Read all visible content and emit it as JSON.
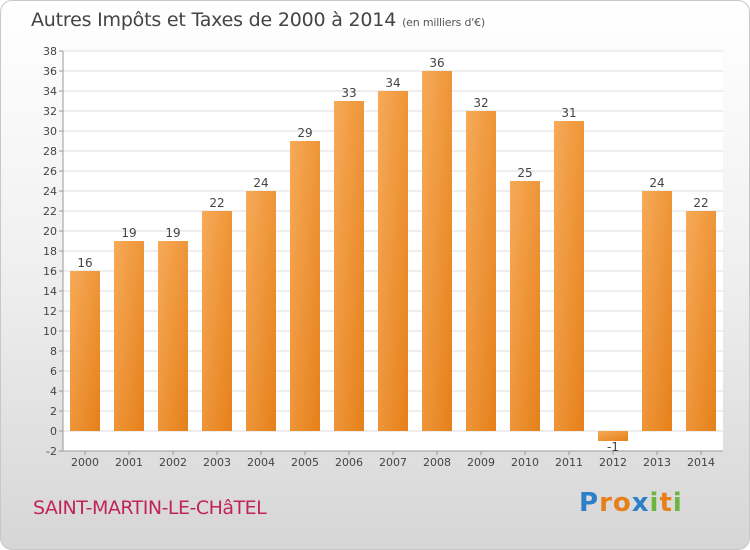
{
  "header": {
    "title": "Autres Impôts et Taxes de 2000 à 2014",
    "subtitle": "(en milliers d'€)"
  },
  "footer": {
    "commune": "SAINT-MARTIN-LE-CHâTEL",
    "logo_letters": [
      "P",
      "r",
      "o",
      "x",
      "i",
      "t",
      "i"
    ],
    "logo_colors": [
      "#2e7fc9",
      "#e5801a",
      "#e5801a",
      "#2e7fc9",
      "#6cb63e",
      "#e5801a",
      "#6cb63e"
    ]
  },
  "chart_data": {
    "type": "bar",
    "title": "Autres Impôts et Taxes de 2000 à 2014",
    "xlabel": "",
    "ylabel": "",
    "ylim": [
      -2,
      38
    ],
    "yticks": [
      -2,
      0,
      2,
      4,
      6,
      8,
      10,
      12,
      14,
      16,
      18,
      20,
      22,
      24,
      26,
      28,
      30,
      32,
      34,
      36,
      38
    ],
    "categories": [
      "2000",
      "2001",
      "2002",
      "2003",
      "2004",
      "2005",
      "2006",
      "2007",
      "2008",
      "2009",
      "2010",
      "2011",
      "2012",
      "2013",
      "2014"
    ],
    "values": [
      16,
      19,
      19,
      22,
      24,
      29,
      33,
      34,
      36,
      32,
      25,
      31,
      -1,
      24,
      22
    ],
    "data_labels": [
      "16",
      "19",
      "19",
      "22",
      "24",
      "29",
      "33",
      "34",
      "36",
      "32",
      "25",
      "31",
      "-1",
      "24",
      "22"
    ],
    "grid": true,
    "bar_color": "#e5801a",
    "bar_color_light": "#f7aa58"
  }
}
